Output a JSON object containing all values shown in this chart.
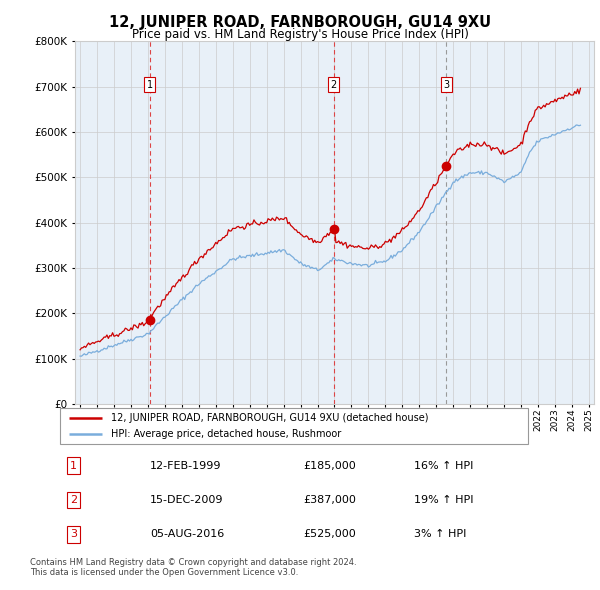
{
  "title": "12, JUNIPER ROAD, FARNBOROUGH, GU14 9XU",
  "subtitle": "Price paid vs. HM Land Registry's House Price Index (HPI)",
  "red_label": "12, JUNIPER ROAD, FARNBOROUGH, GU14 9XU (detached house)",
  "blue_label": "HPI: Average price, detached house, Rushmoor",
  "transactions": [
    {
      "num": 1,
      "date": "12-FEB-1999",
      "price": 185000,
      "hpi_pct": "16%",
      "dir": "↑"
    },
    {
      "num": 2,
      "date": "15-DEC-2009",
      "price": 387000,
      "hpi_pct": "19%",
      "dir": "↑"
    },
    {
      "num": 3,
      "date": "05-AUG-2016",
      "price": 525000,
      "hpi_pct": "3%",
      "dir": "↑"
    }
  ],
  "footer": "Contains HM Land Registry data © Crown copyright and database right 2024.\nThis data is licensed under the Open Government Licence v3.0.",
  "ylim": [
    0,
    800000
  ],
  "yticks": [
    0,
    100000,
    200000,
    300000,
    400000,
    500000,
    600000,
    700000,
    800000
  ],
  "red_color": "#cc0000",
  "blue_color": "#7aaddc",
  "vline_color_red": "#dd4444",
  "vline_color_gray": "#999999",
  "grid_color": "#cccccc",
  "chart_bg": "#e8f0f8",
  "background": "#ffffff",
  "sale_years": [
    1999.12,
    2009.96,
    2016.6
  ],
  "sale_prices": [
    185000,
    387000,
    525000
  ],
  "sale_nums": [
    1,
    2,
    3
  ],
  "vline_colors": [
    "red",
    "red",
    "gray"
  ],
  "xlim": [
    1994.7,
    2025.3
  ]
}
